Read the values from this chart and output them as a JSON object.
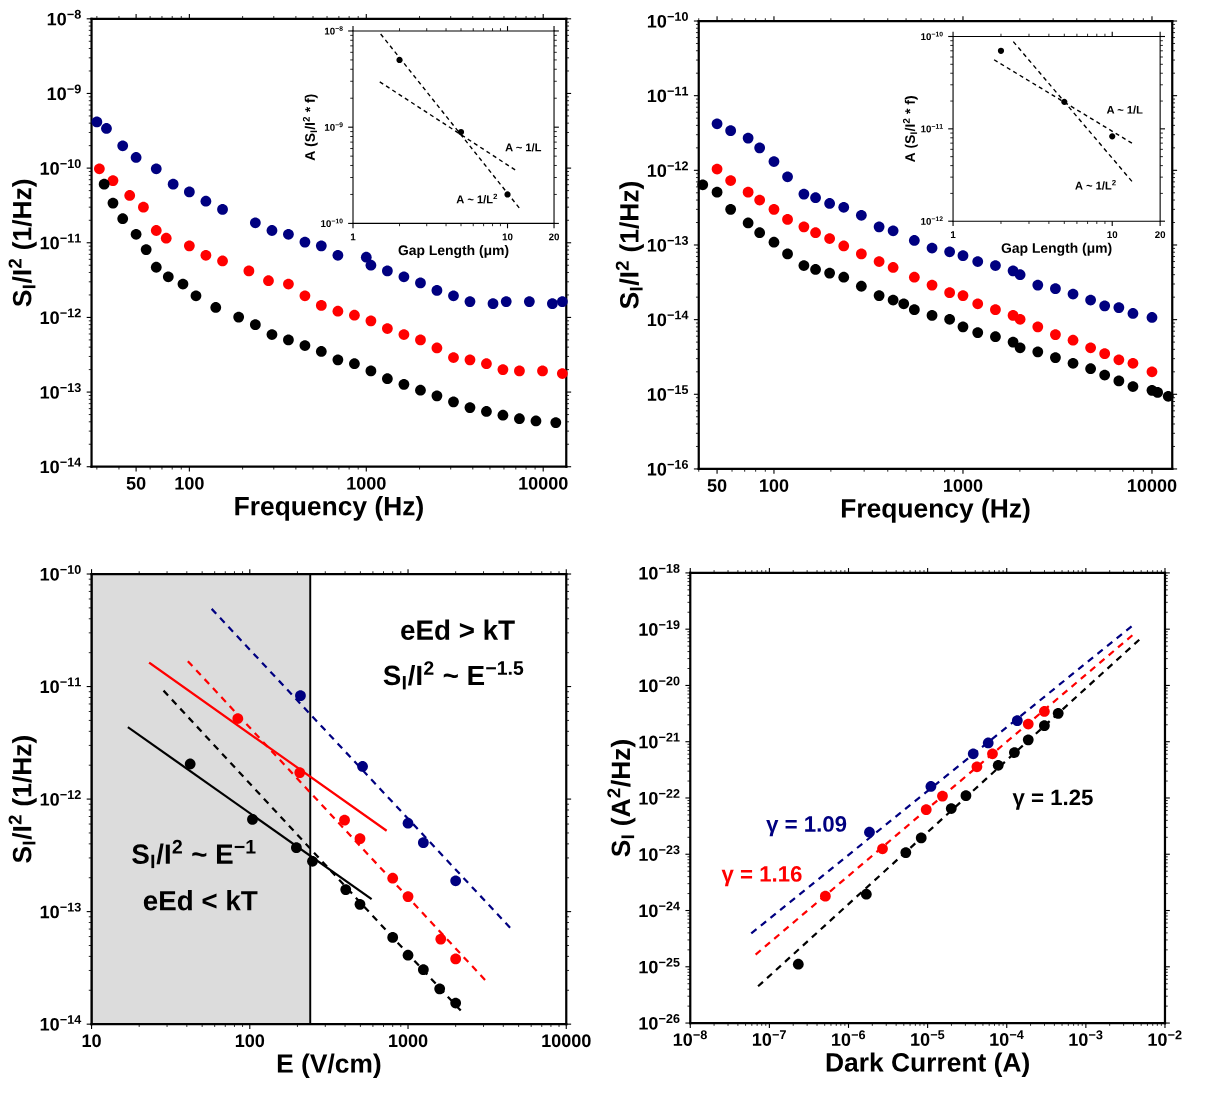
{
  "chart_data": [
    {
      "type": "scatter",
      "xlabel": "Frequency (Hz)",
      "ylabel": "S$_{I}$/I$^{2}$ (1/Hz)",
      "log": "xy",
      "marker": "circle",
      "xlim": [
        28,
        13500
      ],
      "xticks": [
        50,
        100,
        1000,
        10000
      ],
      "ylim": [
        1e-14,
        1e-08
      ],
      "yticks": [
        {
          "value": 1e-14,
          "label": "10$^{−14}$"
        },
        {
          "value": 1e-13,
          "label": "10$^{−13}$"
        },
        {
          "value": 1e-12,
          "label": "10$^{−12}$"
        },
        {
          "value": 1e-11,
          "label": "10$^{−11}$"
        },
        {
          "value": 1e-10,
          "label": "10$^{−10}$"
        },
        {
          "value": 1e-09,
          "label": "10$^{−9}$"
        },
        {
          "value": 1e-08,
          "label": "10$^{−8}$"
        }
      ],
      "series": [
        {
          "color": "#000080",
          "x": [
            30,
            34,
            42,
            50,
            65,
            81,
            100,
            124,
            154,
            236,
            293,
            363,
            450,
            557,
            691,
            1000,
            1062,
            1316,
            1632,
            2024,
            2508,
            3111,
            3855,
            5204,
            6180,
            8350,
            11270,
            12830
          ],
          "values": [
            4.16e-10,
            3.4e-10,
            1.99e-10,
            1.39e-10,
            9.8e-11,
            6.1e-11,
            4.8e-11,
            3.6e-11,
            2.8e-11,
            1.85e-11,
            1.46e-11,
            1.3e-11,
            1.02e-11,
            9.1e-12,
            6.8e-12,
            6.4e-12,
            5e-12,
            4.2e-12,
            3.5e-12,
            2.9e-12,
            2.3e-12,
            1.95e-12,
            1.63e-12,
            1.53e-12,
            1.63e-12,
            1.63e-12,
            1.53e-12,
            1.63e-12
          ]
        },
        {
          "color": "#ff0000",
          "x": [
            31,
            37,
            46,
            55,
            65,
            74,
            100,
            124,
            154,
            217,
            280,
            363,
            450,
            557,
            691,
            857,
            1062,
            1316,
            1632,
            2024,
            2508,
            3111,
            3855,
            4777,
            5920,
            7339,
            9910,
            12830
          ],
          "values": [
            9.8e-11,
            6.8e-11,
            4.3e-11,
            3e-11,
            1.46e-11,
            1.15e-11,
            9.1e-12,
            6.8e-12,
            5.7e-12,
            4.2e-12,
            3.1e-12,
            2.8e-12,
            1.95e-12,
            1.45e-12,
            1.21e-12,
            1.07e-12,
            9e-13,
            7.1e-13,
            5.9e-13,
            5e-13,
            3.9e-13,
            2.9e-13,
            2.7e-13,
            2.4e-13,
            2e-13,
            1.92e-13,
            1.92e-13,
            1.77e-13
          ]
        },
        {
          "color": "#000000",
          "x": [
            33,
            37,
            42,
            50,
            57,
            65,
            76,
            92,
            109,
            141,
            190,
            236,
            293,
            363,
            450,
            557,
            691,
            857,
            1062,
            1316,
            1632,
            2024,
            2508,
            3111,
            3855,
            4777,
            5920,
            7339,
            9100,
            11780
          ],
          "values": [
            6.1e-11,
            3.4e-11,
            2.1e-11,
            1.3e-11,
            8.1e-12,
            4.7e-12,
            3.5e-12,
            2.8e-12,
            1.95e-12,
            1.36e-12,
            1.01e-12,
            8e-13,
            5.9e-13,
            5e-13,
            4.2e-13,
            3.5e-13,
            2.7e-13,
            2.4e-13,
            1.92e-13,
            1.51e-13,
            1.27e-13,
            1.06e-13,
            8.9e-14,
            7.4e-14,
            6.2e-14,
            5.5e-14,
            4.9e-14,
            4.4e-14,
            4.1e-14,
            3.9e-14
          ]
        }
      ]
    },
    {
      "type": "scatter",
      "xlabel": "Frequency (Hz)",
      "ylabel": "S$_{I}$/I$^{2}$ (1/Hz)",
      "log": "xy",
      "marker": "circle",
      "xlim": [
        40,
        12800
      ],
      "xticks": [
        50,
        100,
        1000,
        10000
      ],
      "ylim": [
        1e-16,
        1e-10
      ],
      "yticks": [
        {
          "value": 1e-16,
          "label": "10$^{−16}$"
        },
        {
          "value": 1e-15,
          "label": "10$^{−15}$"
        },
        {
          "value": 1e-14,
          "label": "10$^{−14}$"
        },
        {
          "value": 1e-13,
          "label": "10$^{−13}$"
        },
        {
          "value": 1e-12,
          "label": "10$^{−12}$"
        },
        {
          "value": 1e-11,
          "label": "10$^{−11}$"
        },
        {
          "value": 1e-10,
          "label": "10$^{−10}$"
        }
      ],
      "series": [
        {
          "color": "#000080",
          "x": [
            50,
            59,
            73,
            84,
            100,
            118,
            144,
            166,
            197,
            234,
            290,
            360,
            427,
            553,
            686,
            850,
            1000,
            1197,
            1485,
            1841,
            2006,
            2488,
            3084,
            3822,
            4735,
            5620,
            6680,
            7930,
            10000
          ],
          "values": [
            4.2e-12,
            3.4e-12,
            2.7e-12,
            2e-12,
            1.31e-12,
            8.2e-13,
            4.8e-13,
            4.3e-13,
            3.6e-13,
            3.2e-13,
            2.5e-13,
            1.75e-13,
            1.55e-13,
            1.15e-13,
            9.1e-14,
            8.1e-14,
            7.2e-14,
            6e-14,
            5.3e-14,
            4.5e-14,
            4e-14,
            2.9e-14,
            2.6e-14,
            2.2e-14,
            1.83e-14,
            1.53e-14,
            1.45e-14,
            1.21e-14,
            1.07e-14
          ]
        },
        {
          "color": "#ff0000",
          "x": [
            50,
            59,
            73,
            84,
            100,
            118,
            144,
            166,
            197,
            234,
            290,
            360,
            427,
            553,
            686,
            850,
            1000,
            1197,
            1485,
            1841,
            2006,
            2488,
            3084,
            3822,
            4735,
            5620,
            6680,
            7930,
            10000
          ],
          "values": [
            1.04e-12,
            7.3e-13,
            5.1e-13,
            4e-13,
            3e-13,
            2.2e-13,
            1.75e-13,
            1.46e-13,
            1.22e-13,
            9.7e-14,
            7.6e-14,
            6e-14,
            5e-14,
            3.7e-14,
            2.9e-14,
            2.3e-14,
            2.1e-14,
            1.63e-14,
            1.36e-14,
            1.14e-14,
            1.01e-14,
            8e-15,
            6.3e-15,
            5.3e-15,
            4.2e-15,
            3.5e-15,
            2.9e-15,
            2.6e-15,
            2e-15
          ]
        },
        {
          "color": "#000000",
          "x": [
            42,
            50,
            59,
            73,
            84,
            100,
            118,
            144,
            166,
            197,
            234,
            290,
            360,
            427,
            486,
            553,
            686,
            850,
            1000,
            1197,
            1485,
            1841,
            2006,
            2488,
            3084,
            3822,
            4735,
            5620,
            6680,
            7930,
            10000,
            10710,
            12190
          ],
          "values": [
            6.4e-13,
            5.1e-13,
            3e-13,
            1.97e-13,
            1.46e-13,
            1.09e-13,
            7.6e-14,
            5.3e-14,
            4.7e-14,
            4.2e-14,
            3.7e-14,
            2.8e-14,
            2.1e-14,
            1.83e-14,
            1.63e-14,
            1.36e-14,
            1.14e-14,
            1.01e-14,
            8e-15,
            6.7e-15,
            5.9e-15,
            5e-15,
            4.2e-15,
            3.7e-15,
            3.1e-15,
            2.6e-15,
            2.2e-15,
            1.81e-15,
            1.51e-15,
            1.27e-15,
            1.13e-15,
            1.06e-15,
            9.4e-16
          ]
        }
      ]
    },
    {
      "type": "scatter",
      "xlabel": "E (V/cm)",
      "ylabel": "S$_{I}$/I$^{2}$ (1/Hz)",
      "log": "xy",
      "marker": "circle",
      "xlim": [
        10,
        10000
      ],
      "xticks": [
        10,
        100,
        1000,
        10000
      ],
      "ylim": [
        1e-14,
        1e-10
      ],
      "yticks": [
        {
          "value": 1e-14,
          "label": "10$^{−14}$"
        },
        {
          "value": 1e-13,
          "label": "10$^{−13}$"
        },
        {
          "value": 1e-12,
          "label": "10$^{−12}$"
        },
        {
          "value": 1e-11,
          "label": "10$^{−11}$"
        },
        {
          "value": 1e-10,
          "label": "10$^{−10}$"
        }
      ],
      "bands": [
        {
          "axis": "x",
          "from": 10,
          "to": 241,
          "color": "#dcdcdc"
        }
      ],
      "annotations": [
        "eEd > kT",
        "S$_{I}$/I$^{2}$ ~ E$^{−1.5}$",
        "S$_{I}$/I$^{2}$ ~ E$^{−1}$",
        "eEd < kT"
      ],
      "series": [
        {
          "color": "#000080",
          "x": [
            209,
            516,
            1000,
            1250,
            2000
          ],
          "values": [
            8.3e-12,
            1.95e-12,
            6.1e-13,
            4.1e-13,
            1.88e-13
          ]
        },
        {
          "color": "#ff0000",
          "x": [
            84,
            207,
            397,
            497,
            800,
            1000,
            1610,
            2000
          ],
          "values": [
            5.2e-12,
            1.72e-12,
            6.5e-13,
            4.45e-13,
            1.98e-13,
            1.36e-13,
            5.7e-14,
            3.8e-14
          ]
        },
        {
          "color": "#000000",
          "x": [
            42,
            104,
            197,
            249,
            404,
            497,
            800,
            1000,
            1250,
            1585,
            2000
          ],
          "values": [
            2.05e-12,
            6.6e-13,
            3.7e-13,
            2.8e-13,
            1.57e-13,
            1.16e-13,
            5.9e-14,
            4.1e-14,
            3.05e-14,
            2.06e-14,
            1.54e-14
          ]
        },
        {
          "type": "line",
          "marker": "none",
          "line_style": "dashed",
          "color": "#000080",
          "x": [
            57.4,
            4415
          ],
          "values": [
            4.9e-11,
            7.2e-14
          ]
        },
        {
          "type": "line",
          "marker": "none",
          "line_style": "dashed",
          "color": "#ff0000",
          "x": [
            40.6,
            3067
          ],
          "values": [
            1.68e-11,
            2.47e-14
          ]
        },
        {
          "type": "line",
          "marker": "none",
          "line_style": "solid",
          "color": "#ff0000",
          "x": [
            23.4,
            723
          ],
          "values": [
            1.61e-11,
            5.3e-13
          ]
        },
        {
          "type": "line",
          "marker": "none",
          "line_style": "dashed",
          "color": "#000000",
          "x": [
            28.5,
            2153
          ],
          "values": [
            9.2e-12,
            1.32e-14
          ]
        },
        {
          "type": "line",
          "marker": "none",
          "line_style": "solid",
          "color": "#000000",
          "x": [
            17.2,
            581
          ],
          "values": [
            4.3e-12,
            1.31e-13
          ]
        }
      ]
    },
    {
      "type": "scatter",
      "xlabel": "Dark Current (A)",
      "ylabel": "S$_{I}$ (A$^{2}$/Hz)",
      "log": "xy",
      "marker": "circle",
      "xlim": [
        1e-08,
        0.01
      ],
      "xticks": [
        {
          "value": 1e-08,
          "label": "10$^{−8}$"
        },
        {
          "value": 1e-07,
          "label": "10$^{−7}$"
        },
        {
          "value": 1e-06,
          "label": "10$^{−6}$"
        },
        {
          "value": 1e-05,
          "label": "10$^{−5}$"
        },
        {
          "value": 0.0001,
          "label": "10$^{−4}$"
        },
        {
          "value": 0.001,
          "label": "10$^{−3}$"
        },
        {
          "value": 0.01,
          "label": "10$^{−2}$"
        }
      ],
      "ylim": [
        1e-26,
        1e-18
      ],
      "yticks": [
        {
          "value": 1e-26,
          "label": "10$^{−26}$"
        },
        {
          "value": 1e-25,
          "label": "10$^{−25}$"
        },
        {
          "value": 1e-24,
          "label": "10$^{−24}$"
        },
        {
          "value": 1e-23,
          "label": "10$^{−23}$"
        },
        {
          "value": 1e-22,
          "label": "10$^{−22}$"
        },
        {
          "value": 1e-21,
          "label": "10$^{−21}$"
        },
        {
          "value": 1e-20,
          "label": "10$^{−20}$"
        },
        {
          "value": 1e-19,
          "label": "10$^{−19}$"
        },
        {
          "value": 1e-18,
          "label": "10$^{−18}$"
        }
      ],
      "annotations": [
        "γ = 1.09",
        "γ = 1.16",
        "γ = 1.25"
      ],
      "series": [
        {
          "color": "#000080",
          "x": [
            1.84e-06,
            1.1e-05,
            3.77e-05,
            5.83e-05,
            0.000136
          ],
          "values": [
            2.46e-23,
            1.6e-22,
            6.1e-22,
            9.5e-22,
            2.37e-21
          ]
        },
        {
          "color": "#ff0000",
          "x": [
            5.1e-07,
            2.69e-06,
            9.6e-06,
            1.54e-05,
            4.2e-05,
            6.6e-05,
            0.000187,
            0.000299
          ],
          "values": [
            1.8e-24,
            1.25e-23,
            6.2e-23,
            1.08e-22,
            3.58e-22,
            6.1e-22,
            2.06e-21,
            3.45e-21
          ]
        },
        {
          "color": "#000000",
          "x": [
            2.32e-07,
            1.68e-06,
            5.3e-06,
            8.3e-06,
            1.99e-05,
            3.05e-05,
            7.8e-05,
            0.000125,
            0.000187,
            0.000299,
            0.000447
          ],
          "values": [
            1.11e-25,
            1.95e-24,
            1.07e-23,
            1.95e-23,
            6.5e-23,
            1.1e-22,
            3.81e-22,
            6.4e-22,
            1.08e-21,
            1.93e-21,
            3.19e-21
          ]
        },
        {
          "type": "line",
          "marker": "none",
          "line_style": "dashed",
          "color": "#000080",
          "x": [
            5.9e-08,
            0.00378
          ],
          "values": [
            3.92e-25,
            1.12e-19
          ]
        },
        {
          "type": "line",
          "marker": "none",
          "line_style": "dashed",
          "color": "#ff0000",
          "x": [
            6.7e-08,
            0.00387
          ],
          "values": [
            1.65e-25,
            7.8e-20
          ]
        },
        {
          "type": "line",
          "marker": "none",
          "line_style": "dashed",
          "color": "#000000",
          "x": [
            7.2e-08,
            0.00473
          ],
          "values": [
            4.5e-26,
            6.5e-20
          ]
        }
      ]
    },
    {
      "type": "scatter",
      "xlabel": "Gap Length (μm)",
      "ylabel": "A (S$_{I}$/I$^{2}$ * f)",
      "log": "xy",
      "marker": "circle",
      "xlim": [
        1,
        20
      ],
      "xticks": [
        1,
        10,
        20
      ],
      "ylim": [
        1e-10,
        1e-08
      ],
      "yticks": [
        {
          "value": 1e-10,
          "label": "10$^{−10}$"
        },
        {
          "value": 1e-09,
          "label": "10$^{−9}$"
        },
        {
          "value": 1e-08,
          "label": "10$^{−8}$"
        }
      ],
      "annotations": [
        "A ~ 1/L",
        "A ~ 1/L$^{2}$"
      ],
      "series": [
        {
          "color": "#000000",
          "x": [
            2,
            5,
            10
          ],
          "values": [
            5e-09,
            8.9e-10,
            2e-10
          ]
        },
        {
          "type": "line",
          "marker": "none",
          "line_style": "dashed",
          "color": "#000000",
          "x": [
            1.51,
            11.9
          ],
          "values": [
            9.3e-09,
            1.45e-10
          ]
        },
        {
          "type": "line",
          "marker": "none",
          "line_style": "dashed",
          "color": "#000000",
          "x": [
            1.49,
            11.2
          ],
          "values": [
            2.96e-09,
            3.6e-10
          ]
        }
      ]
    },
    {
      "type": "scatter",
      "xlabel": "Gap Length (μm)",
      "ylabel": "A (S$_{I}$/I$^{2}$ * f)",
      "log": "xy",
      "marker": "circle",
      "xlim": [
        1,
        20
      ],
      "xticks": [
        1,
        10,
        20
      ],
      "ylim": [
        1e-12,
        1e-10
      ],
      "yticks": [
        {
          "value": 1e-12,
          "label": "10$^{−12}$"
        },
        {
          "value": 1e-11,
          "label": "10$^{−11}$"
        },
        {
          "value": 1e-10,
          "label": "10$^{−10}$"
        }
      ],
      "annotations": [
        "A ~ 1/L",
        "A ~ 1/L$^{2}$"
      ],
      "series": [
        {
          "color": "#000000",
          "x": [
            2,
            5,
            10
          ],
          "values": [
            7e-11,
            1.96e-11,
            8.3e-12
          ]
        },
        {
          "type": "line",
          "marker": "none",
          "line_style": "dashed",
          "color": "#000000",
          "x": [
            2.39,
            13.3
          ],
          "values": [
            8.8e-11,
            2.7e-12
          ]
        },
        {
          "type": "line",
          "marker": "none",
          "line_style": "dashed",
          "color": "#000000",
          "x": [
            1.81,
            13.3
          ],
          "values": [
            5.6e-11,
            7e-12
          ]
        }
      ]
    }
  ]
}
